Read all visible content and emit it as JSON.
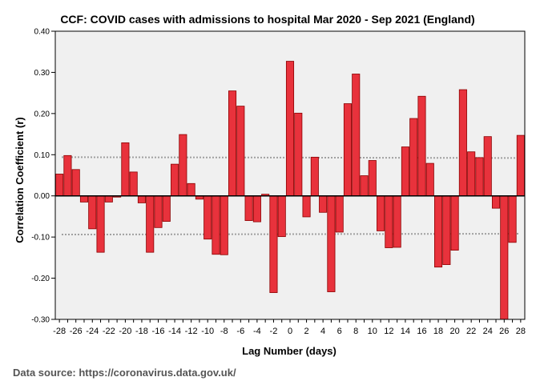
{
  "chart_data": {
    "type": "bar",
    "title": "CCF: COVID cases with admissions to hospital Mar 2020 - Sep 2021 (England)",
    "xlabel": "Lag Number (days)",
    "ylabel": "Correlation Coefficient (r)",
    "ylim": [
      -0.3,
      0.4
    ],
    "yticks": [
      "0.40",
      "0.30",
      "0.20",
      "0.10",
      "0.00",
      "-0.10",
      "-0.20",
      "-0.30"
    ],
    "ytick_values": [
      0.4,
      0.3,
      0.2,
      0.1,
      0.0,
      -0.1,
      -0.2,
      -0.3
    ],
    "xtick_labels": [
      "-28",
      "-26",
      "-24",
      "-22",
      "-20",
      "-18",
      "-16",
      "-14",
      "-12",
      "-10",
      "-8",
      "-6",
      "-4",
      "-2",
      "0",
      "2",
      "4",
      "6",
      "8",
      "10",
      "12",
      "14",
      "16",
      "18",
      "20",
      "22",
      "24",
      "26",
      "28"
    ],
    "categories": [
      -28,
      -27,
      -26,
      -25,
      -24,
      -23,
      -22,
      -21,
      -20,
      -19,
      -18,
      -17,
      -16,
      -15,
      -14,
      -13,
      -12,
      -11,
      -10,
      -9,
      -8,
      -7,
      -6,
      -5,
      -4,
      -3,
      -2,
      -1,
      0,
      1,
      2,
      3,
      4,
      5,
      6,
      7,
      8,
      9,
      10,
      11,
      12,
      13,
      14,
      15,
      16,
      17,
      18,
      19,
      20,
      21,
      22,
      23,
      24,
      25,
      26,
      27,
      28
    ],
    "values": [
      0.053,
      0.098,
      0.064,
      -0.015,
      -0.08,
      -0.137,
      -0.015,
      -0.003,
      0.129,
      0.058,
      -0.017,
      -0.137,
      -0.077,
      -0.062,
      0.077,
      0.149,
      0.03,
      -0.008,
      -0.105,
      -0.142,
      -0.143,
      0.255,
      0.218,
      -0.06,
      -0.063,
      0.004,
      -0.235,
      -0.099,
      0.327,
      0.201,
      -0.051,
      0.094,
      -0.04,
      -0.233,
      -0.088,
      0.224,
      0.296,
      0.049,
      0.086,
      -0.085,
      -0.126,
      -0.125,
      0.119,
      0.188,
      0.242,
      0.079,
      -0.173,
      -0.167,
      -0.132,
      0.258,
      0.107,
      0.093,
      0.144,
      -0.03,
      -0.3,
      -0.113,
      0.147
    ],
    "confidence_band": {
      "upper": [
        0.094,
        0.092
      ],
      "lower": [
        -0.094,
        -0.092
      ]
    },
    "colors": {
      "bar_fill": "#e8323c",
      "bar_stroke": "#8b0000",
      "plot_bg": "#f0f0f0",
      "band_line": "#a0a0a0"
    }
  },
  "source_note": "Data source: https://coronavirus.data.gov.uk/"
}
